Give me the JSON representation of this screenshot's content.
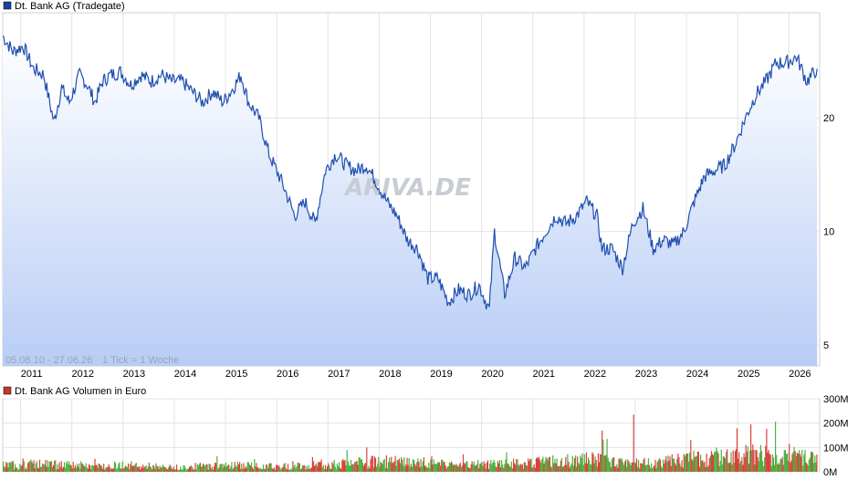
{
  "price_chart": {
    "legend_label": "Dt. Bank AG (Tradegate)",
    "legend_color": "#1a3fa0",
    "line_color": "#1f4fb0",
    "date_range": "05.08.10 - 27.06.26",
    "tick_info": "1 Tick = 1 Woche",
    "watermark": "ARIVA.DE",
    "x_ticks": [
      "2011",
      "2012",
      "2013",
      "2014",
      "2015",
      "2016",
      "2017",
      "2018",
      "2019",
      "2020",
      "2021",
      "2022",
      "2023",
      "2024",
      "2025",
      "2026"
    ],
    "y_ticks": [
      "5",
      "10",
      "20"
    ],
    "y_tick_values": [
      5,
      10,
      20
    ],
    "y_scale": "log",
    "ylim": [
      4.4,
      38
    ]
  },
  "volume_chart": {
    "legend_label": "Dt. Bank AG Volumen in Euro",
    "legend_color": "#c0392b",
    "up_color": "#4caf3e",
    "down_color": "#d9423b",
    "y_ticks": [
      "0M",
      "100M",
      "200M",
      "300M"
    ],
    "y_tick_values": [
      0,
      100,
      200,
      300
    ],
    "ylim": [
      0,
      300
    ]
  },
  "chart_data": [
    {
      "type": "line",
      "y_scale": "log",
      "x_unit": "year",
      "x": [
        2010.6,
        2010.8,
        2011.0,
        2011.2,
        2011.4,
        2011.6,
        2011.75,
        2011.9,
        2012.1,
        2012.25,
        2012.4,
        2012.55,
        2012.7,
        2012.9,
        2013.1,
        2013.3,
        2013.5,
        2013.7,
        2013.9,
        2014.1,
        2014.3,
        2014.5,
        2014.7,
        2014.9,
        2015.1,
        2015.25,
        2015.4,
        2015.6,
        2015.8,
        2016.0,
        2016.1,
        2016.3,
        2016.5,
        2016.7,
        2016.9,
        2017.1,
        2017.3,
        2017.5,
        2017.7,
        2017.9,
        2018.1,
        2018.3,
        2018.5,
        2018.7,
        2018.9,
        2019.1,
        2019.3,
        2019.5,
        2019.7,
        2019.9,
        2020.1,
        2020.2,
        2020.4,
        2020.6,
        2020.8,
        2021.0,
        2021.2,
        2021.4,
        2021.6,
        2021.8,
        2022.0,
        2022.2,
        2022.3,
        2022.5,
        2022.7,
        2022.9,
        2023.1,
        2023.3,
        2023.5,
        2023.7,
        2023.9,
        2024.1,
        2024.3,
        2024.5,
        2024.7,
        2024.9,
        2025.1,
        2025.3,
        2025.5,
        2025.7,
        2025.9,
        2026.1,
        2026.3,
        2026.5
      ],
      "y": [
        33,
        30,
        31,
        27,
        26,
        19.5,
        24,
        22,
        26,
        24.5,
        22,
        25,
        26,
        26.5,
        24.5,
        26,
        25,
        26,
        25,
        25,
        23.5,
        22,
        23.5,
        22,
        24,
        26,
        22,
        20,
        16,
        14,
        13,
        11,
        12,
        10.5,
        14.5,
        16,
        15,
        14.5,
        15,
        13.5,
        12,
        11,
        9.5,
        9,
        7.5,
        7.5,
        6.5,
        7,
        6.8,
        7.2,
        6.2,
        10,
        6.8,
        8.5,
        8,
        9,
        10,
        11,
        10.5,
        11,
        12,
        11,
        9,
        9,
        8,
        10.5,
        11.5,
        9,
        9.5,
        9.2,
        10,
        12,
        14,
        14.5,
        15,
        17,
        20,
        23,
        25,
        28,
        28,
        29,
        25,
        27
      ],
      "title": "Dt. Bank AG (Tradegate)"
    },
    {
      "type": "bar",
      "x_unit": "year",
      "approx_typical_volume_M": [
        30,
        35,
        30,
        25,
        30,
        25,
        20,
        25,
        30,
        28,
        25,
        30,
        35,
        40,
        45,
        40,
        35,
        30,
        35,
        40,
        45,
        50,
        55,
        45,
        40,
        50,
        60,
        70,
        75,
        80,
        70
      ],
      "x_start": 2010.6,
      "x_end": 2026.5,
      "notable_peaks": [
        {
          "x": 2022.9,
          "value": 235
        },
        {
          "x": 2025.2,
          "value": 195
        },
        {
          "x": 2022.3,
          "value": 170
        }
      ],
      "title": "Dt. Bank AG Volumen in Euro"
    }
  ]
}
